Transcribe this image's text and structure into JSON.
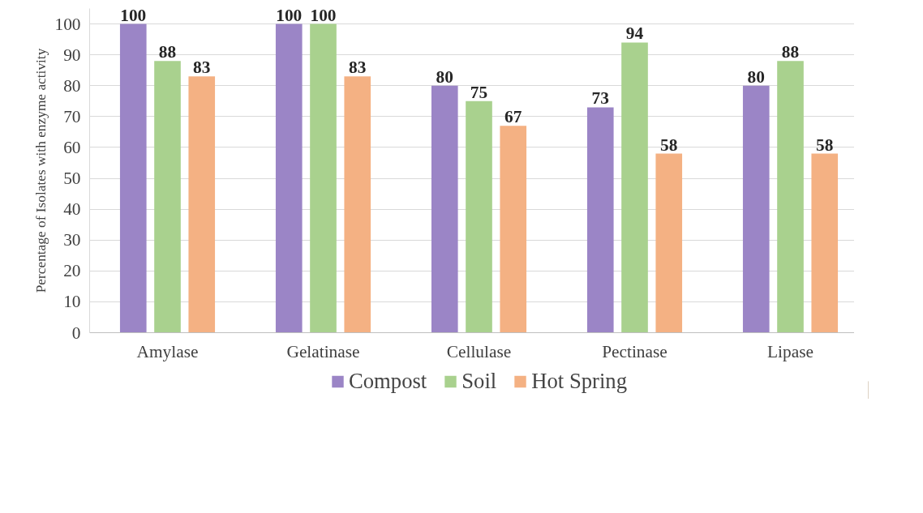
{
  "chart_data": {
    "type": "bar",
    "ylabel": "Percentage of Isolates with enzyme activity",
    "categories": [
      "Amylase",
      "Gelatinase",
      "Cellulase",
      "Pectinase",
      "Lipase"
    ],
    "series": [
      {
        "name": "Compost",
        "color": "#9b85c6",
        "values": [
          100,
          100,
          80,
          73,
          80
        ]
      },
      {
        "name": "Soil",
        "color": "#a9d18e",
        "values": [
          88,
          100,
          75,
          94,
          88
        ]
      },
      {
        "name": "Hot Spring",
        "color": "#f4b183",
        "values": [
          83,
          83,
          67,
          58,
          58
        ]
      }
    ],
    "ylim": [
      0,
      105
    ],
    "yticks": [
      0,
      10,
      20,
      30,
      40,
      50,
      60,
      70,
      80,
      90,
      100
    ],
    "grid": "y",
    "legend": "bottom",
    "data_labels": true
  }
}
